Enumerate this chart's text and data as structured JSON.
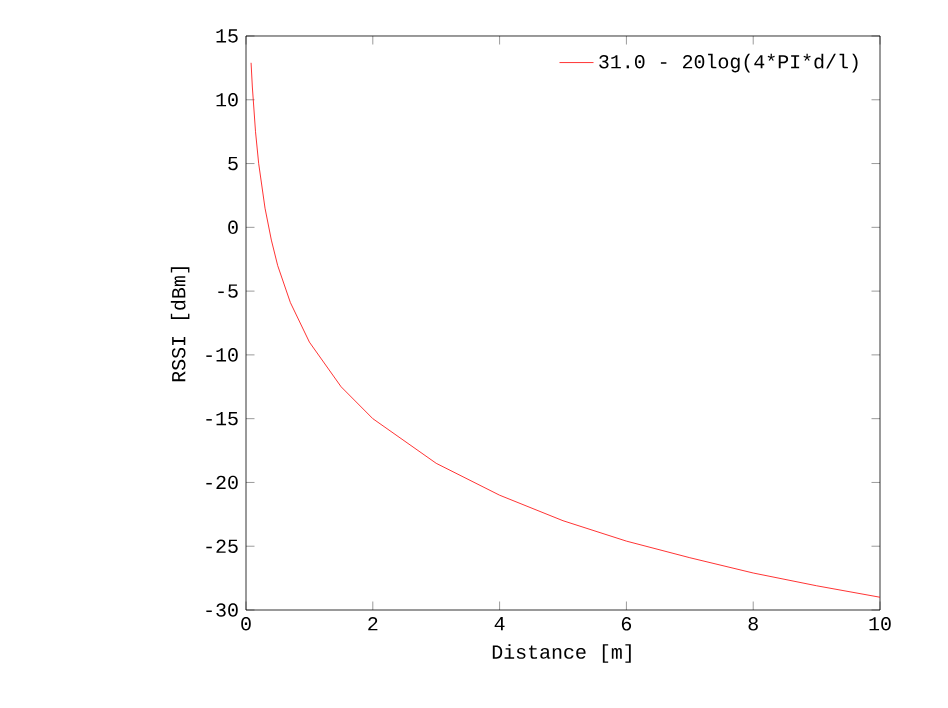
{
  "chart_data": {
    "type": "line",
    "xlabel": "Distance [m]",
    "ylabel": "RSSI [dBm]",
    "xlim": [
      0,
      10
    ],
    "ylim": [
      -30,
      15
    ],
    "xticks": [
      0,
      2,
      4,
      6,
      8,
      10
    ],
    "yticks": [
      -30,
      -25,
      -20,
      -15,
      -10,
      -5,
      0,
      5,
      10,
      15
    ],
    "grid": false,
    "legend": "top right",
    "marker": "none",
    "line_style": "solid",
    "series": [
      {
        "name": "31.0 - 20log(4*PI*d/l)",
        "color": "#ff0000",
        "x": [
          0.08,
          0.1,
          0.15,
          0.2,
          0.3,
          0.4,
          0.5,
          0.7,
          1,
          1.5,
          2,
          3,
          4,
          5,
          6,
          7,
          8,
          9,
          10
        ],
        "values": [
          12.9,
          11,
          7.5,
          5,
          1.5,
          -1,
          -3,
          -5.9,
          -9,
          -12.5,
          -15,
          -18.5,
          -21,
          -23,
          -24.6,
          -25.9,
          -27.1,
          -28.1,
          -29
        ]
      }
    ]
  }
}
